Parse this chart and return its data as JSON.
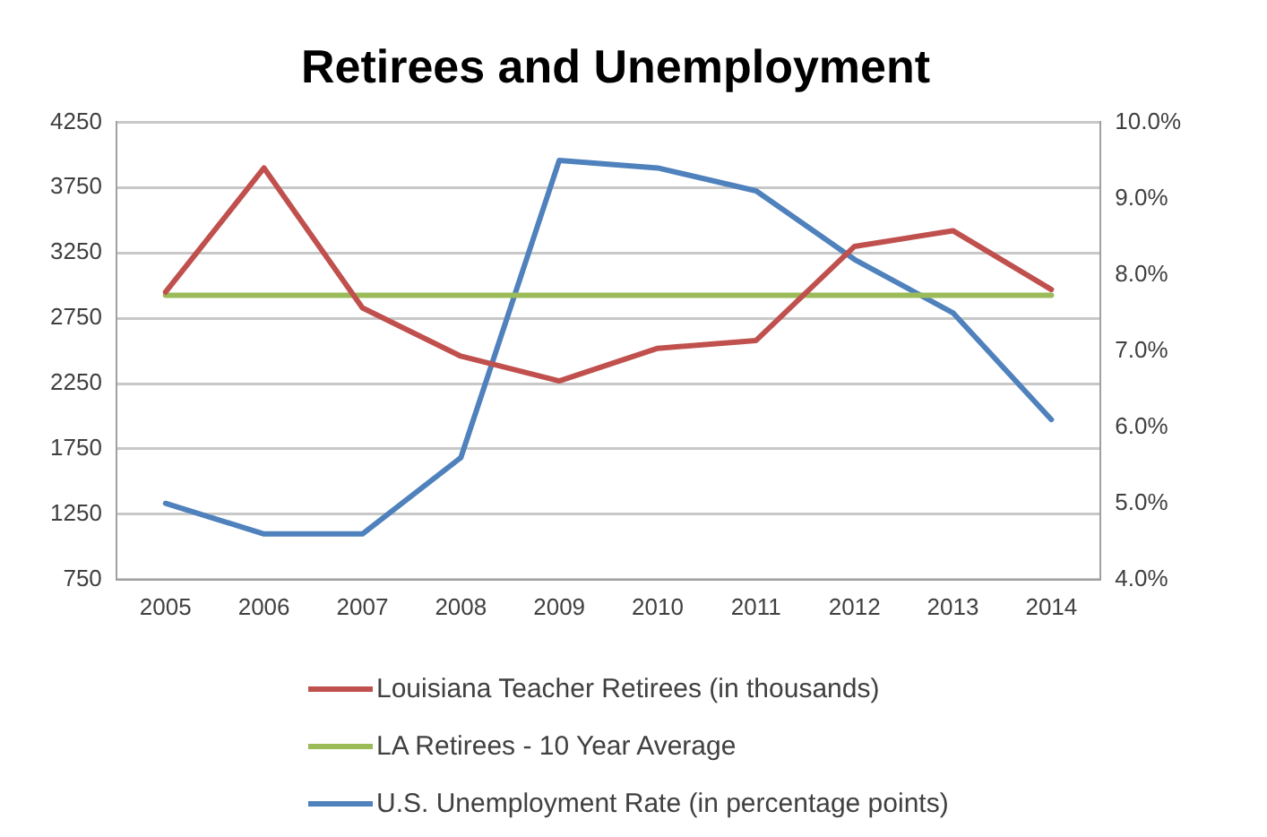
{
  "chart_data": {
    "type": "line",
    "title": "Retirees and Unemployment",
    "categories": [
      "2005",
      "2006",
      "2007",
      "2008",
      "2009",
      "2010",
      "2011",
      "2012",
      "2013",
      "2014"
    ],
    "series": [
      {
        "name": "Louisiana Teacher Retirees (in thousands)",
        "color": "#c0504d",
        "values": [
          2950,
          3900,
          2830,
          2460,
          2270,
          2520,
          2580,
          3300,
          3420,
          2970
        ]
      },
      {
        "name": "LA Retirees - 10 Year Average",
        "color": "#9bbb59",
        "values": [
          2925,
          2925,
          2925,
          2925,
          2925,
          2925,
          2925,
          2925,
          2925,
          2925
        ]
      },
      {
        "name": "U.S. Unemployment Rate (in percentage points)",
        "color": "#4f81bd",
        "axis": "y2",
        "values": [
          5.0,
          4.6,
          4.6,
          5.6,
          9.5,
          9.4,
          9.1,
          8.2,
          7.5,
          6.1
        ]
      }
    ],
    "ylim": [
      750,
      4250
    ],
    "yticks": [
      750,
      1250,
      1750,
      2250,
      2750,
      3250,
      3750,
      4250
    ],
    "y2lim": [
      4,
      10
    ],
    "y2ticks": [
      {
        "value": 4,
        "label": "4.0%"
      },
      {
        "value": 5,
        "label": "5.0%"
      },
      {
        "value": 6,
        "label": "6.0%"
      },
      {
        "value": 7,
        "label": "7.0%"
      },
      {
        "value": 8,
        "label": "8.0%"
      },
      {
        "value": 9,
        "label": "9.0%"
      },
      {
        "value": 10,
        "label": "10.0%"
      }
    ],
    "grid": "y",
    "legend": "bottom",
    "marker": "none",
    "line_style": "solid"
  }
}
